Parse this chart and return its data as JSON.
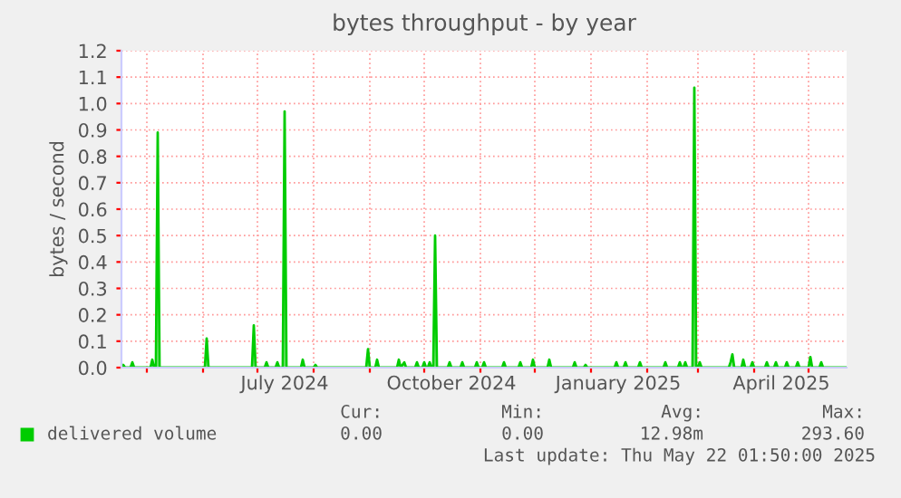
{
  "chart_data": {
    "type": "area",
    "title": "bytes throughput - by year",
    "ylabel": "bytes / second",
    "xlim": [
      "2024-04-17",
      "2025-05-22"
    ],
    "xticks": [
      {
        "value": "2024-05-01",
        "label": null
      },
      {
        "value": "2024-06-01",
        "label": null
      },
      {
        "value": "2024-07-01",
        "label": null
      },
      {
        "value": "2024-07-16",
        "label": "July 2024"
      },
      {
        "value": "2024-08-01",
        "label": null
      },
      {
        "value": "2024-09-01",
        "label": null
      },
      {
        "value": "2024-10-01",
        "label": null
      },
      {
        "value": "2024-10-16",
        "label": "October 2024"
      },
      {
        "value": "2024-11-01",
        "label": null
      },
      {
        "value": "2024-12-01",
        "label": null
      },
      {
        "value": "2025-01-01",
        "label": null
      },
      {
        "value": "2025-01-16",
        "label": "January 2025"
      },
      {
        "value": "2025-02-01",
        "label": null
      },
      {
        "value": "2025-03-01",
        "label": null
      },
      {
        "value": "2025-04-01",
        "label": null
      },
      {
        "value": "2025-04-16",
        "label": "April 2025"
      },
      {
        "value": "2025-05-01",
        "label": null
      }
    ],
    "ylim": [
      0,
      1.2
    ],
    "yticks": [
      {
        "value": 0,
        "label": "0.0"
      },
      0.1,
      0.2,
      0.3,
      0.4,
      0.5,
      0.6,
      0.7,
      0.8,
      0.9,
      {
        "value": 1,
        "label": "1.0"
      },
      1.1,
      1.2
    ],
    "grid": true,
    "legend": "bottom",
    "series": [
      {
        "name": "delivered volume",
        "color": "#00cc00",
        "x": [
          "2024-04-17",
          "2024-04-18",
          "2024-04-19",
          "2024-04-22",
          "2024-04-23",
          "2024-04-24",
          "2024-05-03",
          "2024-05-04",
          "2024-05-05",
          "2024-05-06",
          "2024-05-07",
          "2024-05-08",
          "2024-06-02",
          "2024-06-03",
          "2024-06-04",
          "2024-06-28",
          "2024-06-29",
          "2024-06-30",
          "2024-07-05",
          "2024-07-06",
          "2024-07-07",
          "2024-07-11",
          "2024-07-12",
          "2024-07-13",
          "2024-07-15",
          "2024-07-16",
          "2024-07-17",
          "2024-07-25",
          "2024-07-26",
          "2024-07-27",
          "2024-08-01",
          "2024-08-02",
          "2024-08-03",
          "2024-08-30",
          "2024-08-31",
          "2024-09-01",
          "2024-09-04",
          "2024-09-05",
          "2024-09-06",
          "2024-09-16",
          "2024-09-17",
          "2024-09-18",
          "2024-09-20",
          "2024-09-21",
          "2024-09-26",
          "2024-09-27",
          "2024-09-28",
          "2024-09-30",
          "2024-10-01",
          "2024-10-02",
          "2024-10-03",
          "2024-10-04",
          "2024-10-05",
          "2024-10-06",
          "2024-10-07",
          "2024-10-08",
          "2024-10-14",
          "2024-10-15",
          "2024-10-16",
          "2024-10-21",
          "2024-10-22",
          "2024-10-23",
          "2024-10-29",
          "2024-10-30",
          "2024-10-31",
          "2024-11-02",
          "2024-11-03",
          "2024-11-04",
          "2024-11-13",
          "2024-11-14",
          "2024-11-15",
          "2024-11-22",
          "2024-11-23",
          "2024-11-24",
          "2024-11-29",
          "2024-11-30",
          "2024-12-01",
          "2024-12-08",
          "2024-12-09",
          "2024-12-10",
          "2024-12-22",
          "2024-12-23",
          "2024-12-24",
          "2024-12-28",
          "2024-12-29",
          "2024-12-30",
          "2025-01-14",
          "2025-01-15",
          "2025-01-16",
          "2025-01-19",
          "2025-01-20",
          "2025-01-21",
          "2025-01-27",
          "2025-01-28",
          "2025-01-29",
          "2025-02-10",
          "2025-02-11",
          "2025-02-12",
          "2025-02-18",
          "2025-02-19",
          "2025-02-20",
          "2025-02-21",
          "2025-02-22",
          "2025-02-23",
          "2025-02-26",
          "2025-02-27",
          "2025-02-28",
          "2025-03-01",
          "2025-03-02",
          "2025-03-03",
          "2025-03-18",
          "2025-03-19",
          "2025-03-20",
          "2025-03-21",
          "2025-03-25",
          "2025-03-26",
          "2025-03-27",
          "2025-03-30",
          "2025-03-31",
          "2025-04-01",
          "2025-04-07",
          "2025-04-08",
          "2025-04-09",
          "2025-04-12",
          "2025-04-13",
          "2025-04-14",
          "2025-04-18",
          "2025-04-19",
          "2025-04-20",
          "2025-04-24",
          "2025-04-25",
          "2025-04-26",
          "2025-05-01",
          "2025-05-02",
          "2025-05-03",
          "2025-05-07",
          "2025-05-08",
          "2025-05-09",
          "2025-05-22"
        ],
        "values": [
          0,
          0.01,
          0,
          0,
          0.02,
          0,
          0,
          0.03,
          0,
          0,
          0.89,
          0,
          0,
          0.11,
          0,
          0,
          0.16,
          0,
          0,
          0.02,
          0,
          0,
          0.02,
          0,
          0,
          0.97,
          0,
          0,
          0.03,
          0,
          0,
          0.01,
          0,
          0,
          0.07,
          0,
          0,
          0.03,
          0,
          0,
          0.03,
          0,
          0.02,
          0,
          0,
          0.02,
          0,
          0,
          0.02,
          0,
          0,
          0.02,
          0,
          0,
          0.5,
          0,
          0,
          0.02,
          0,
          0,
          0.02,
          0,
          0,
          0.02,
          0,
          0,
          0.02,
          0,
          0,
          0.02,
          0,
          0,
          0.02,
          0,
          0,
          0.03,
          0,
          0,
          0.03,
          0,
          0,
          0.02,
          0,
          0,
          0.01,
          0,
          0,
          0.02,
          0,
          0,
          0.02,
          0,
          0,
          0.02,
          0,
          0,
          0.02,
          0,
          0,
          0.02,
          0,
          0,
          0.02,
          0,
          0,
          1.06,
          0,
          0,
          0.02,
          0,
          0,
          0.02,
          0.05,
          0,
          0,
          0.03,
          0,
          0,
          0.02,
          0,
          0,
          0.02,
          0,
          0,
          0.02,
          0,
          0,
          0.02,
          0,
          0,
          0.02,
          0,
          0,
          0.04,
          0,
          0,
          0.02,
          0,
          0
        ]
      }
    ],
    "annotations": [
      "Cur:",
      "Min:",
      "Avg:",
      "Max:",
      "0.00",
      "0.00",
      "12.98m",
      "293.60",
      "Last update: Thu May 22 01:50:00 2025"
    ]
  }
}
